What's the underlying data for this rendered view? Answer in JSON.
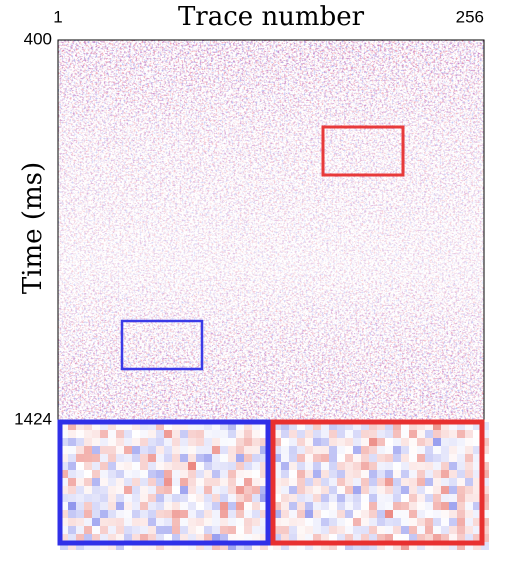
{
  "chart_data": {
    "type": "image",
    "title": "Trace number",
    "y_label": "Time (ms)",
    "xlim": [
      1,
      256
    ],
    "xticks": [
      1,
      256
    ],
    "ylim": [
      400,
      1424
    ],
    "yticks": [
      400,
      1424
    ]
  }
}
